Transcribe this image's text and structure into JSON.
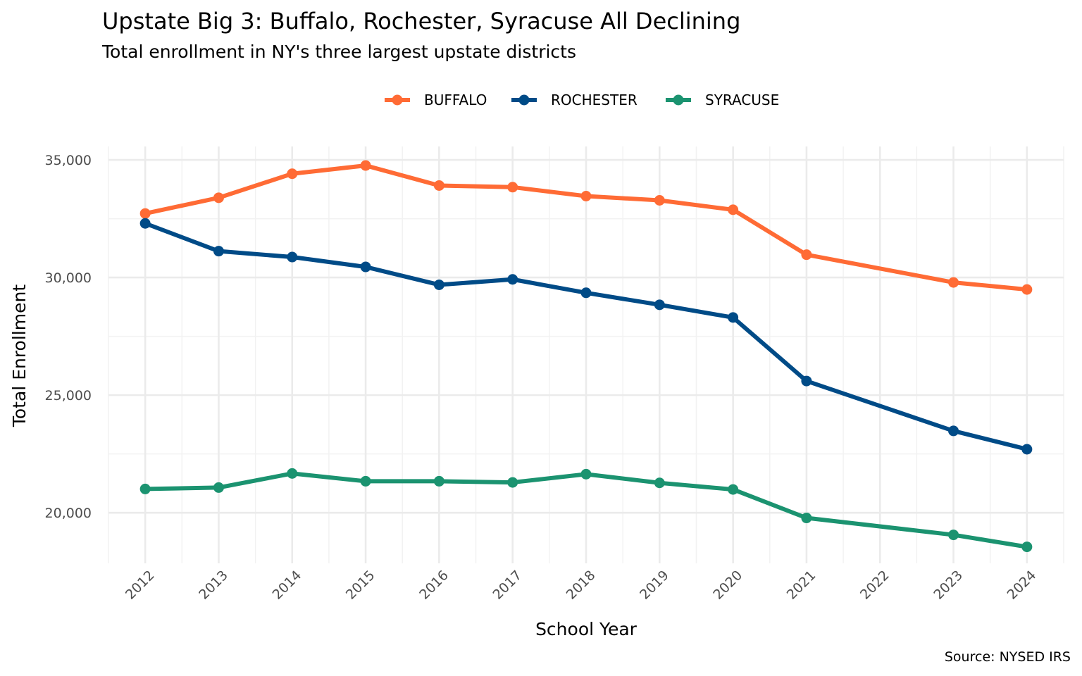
{
  "chart_data": {
    "type": "line",
    "title": "Upstate Big 3: Buffalo, Rochester, Syracuse All Declining",
    "subtitle": "Total enrollment in NY's three largest upstate districts",
    "xlabel": "School Year",
    "ylabel": "Total Enrollment",
    "caption": "Source: NYSED IRS",
    "x_ticks": [
      "2012",
      "2013",
      "2014",
      "2015",
      "2016",
      "2017",
      "2018",
      "2019",
      "2020",
      "2021",
      "2022",
      "2023",
      "2024"
    ],
    "y_ticks": [
      20000,
      25000,
      30000,
      35000
    ],
    "y_tick_labels": [
      "20,000",
      "25,000",
      "30,000",
      "35,000"
    ],
    "xlim": [
      2011.5,
      2024.5
    ],
    "ylim": [
      17850,
      35570
    ],
    "grid": true,
    "legend_position": "top",
    "series": [
      {
        "name": "BUFFALO",
        "color": "#FF6B35",
        "x": [
          2012,
          2013,
          2014,
          2015,
          2016,
          2017,
          2018,
          2019,
          2020,
          2021,
          2023,
          2024
        ],
        "values": [
          32720,
          33390,
          34410,
          34760,
          33910,
          33840,
          33460,
          33280,
          32880,
          30970,
          29790,
          29490
        ]
      },
      {
        "name": "ROCHESTER",
        "color": "#004B87",
        "x": [
          2012,
          2013,
          2014,
          2015,
          2016,
          2017,
          2018,
          2019,
          2020,
          2021,
          2023,
          2024
        ],
        "values": [
          32300,
          31120,
          30870,
          30450,
          29690,
          29920,
          29350,
          28840,
          28300,
          25600,
          23480,
          22700
        ]
      },
      {
        "name": "SYRACUSE",
        "color": "#1B9370",
        "x": [
          2012,
          2013,
          2014,
          2015,
          2016,
          2017,
          2018,
          2019,
          2020,
          2021,
          2023,
          2024
        ],
        "values": [
          21010,
          21070,
          21670,
          21340,
          21340,
          21290,
          21640,
          21270,
          20990,
          19780,
          19060,
          18550
        ]
      }
    ]
  }
}
